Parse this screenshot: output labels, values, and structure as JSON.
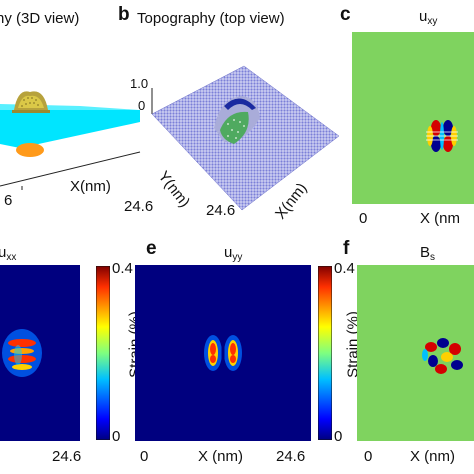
{
  "panels": {
    "a": {
      "title": "ny (3D view)",
      "xlabel": "X(nm)",
      "xmax": "24.6",
      "xmin": "6"
    },
    "b": {
      "letter": "b",
      "title": "Topography (top view)",
      "ztick": "1.0",
      "zzero": "0",
      "ylabel": "Y(nm)",
      "xlabel": "X(nm)",
      "ymax": "24.6"
    },
    "c": {
      "letter": "c",
      "title_main": "u",
      "title_sub": "xy",
      "xmin": "0",
      "xlabel": "X (nm"
    },
    "d": {
      "title_main": "u",
      "title_sub": "xx",
      "cb_max": "0.4",
      "cb_min": "0",
      "cb_label": "Strain (%)",
      "xmax": "24.6"
    },
    "e": {
      "letter": "e",
      "title_main": "u",
      "title_sub": "yy",
      "cb_max": "0.4",
      "cb_min": "0",
      "cb_label": "Strain (%)",
      "xmin": "0",
      "xlabel": "X (nm)",
      "xmax": "24.6"
    },
    "f": {
      "letter": "f",
      "title_main": "B",
      "title_sub": "s",
      "xmin": "0",
      "xlabel": "X (nm)"
    }
  },
  "colors": {
    "jet_dark": "#00007f",
    "jet_green": "#7fd35f",
    "cyan": "#00e5ff",
    "orange": "#ff9a1a",
    "lattice": "#7b7fd8"
  }
}
